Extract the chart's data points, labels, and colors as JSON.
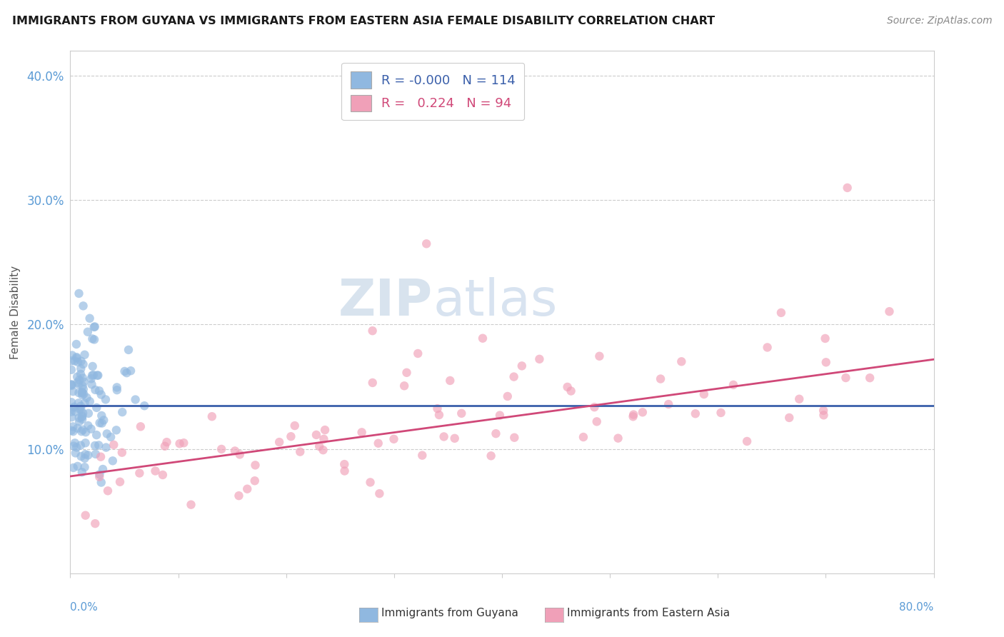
{
  "title": "IMMIGRANTS FROM GUYANA VS IMMIGRANTS FROM EASTERN ASIA FEMALE DISABILITY CORRELATION CHART",
  "source": "Source: ZipAtlas.com",
  "ylabel": "Female Disability",
  "xlim": [
    0.0,
    0.8
  ],
  "ylim": [
    0.0,
    0.42
  ],
  "yticks": [
    0.1,
    0.2,
    0.3,
    0.4
  ],
  "ytick_labels": [
    "10.0%",
    "20.0%",
    "30.0%",
    "40.0%"
  ],
  "legend_r1": "-0.000",
  "legend_n1": "114",
  "legend_r2": "0.224",
  "legend_n2": "94",
  "color_guyana": "#90b8e0",
  "color_eastern_asia": "#f0a0b8",
  "line_color_guyana": "#3a5faa",
  "line_color_eastern_asia": "#d04878",
  "scatter_alpha": 0.65,
  "scatter_size": 80,
  "series1_label": "Immigrants from Guyana",
  "series2_label": "Immigrants from Eastern Asia",
  "guyana_line_y": 0.135,
  "pink_line_start_y": 0.078,
  "pink_line_end_y": 0.172
}
